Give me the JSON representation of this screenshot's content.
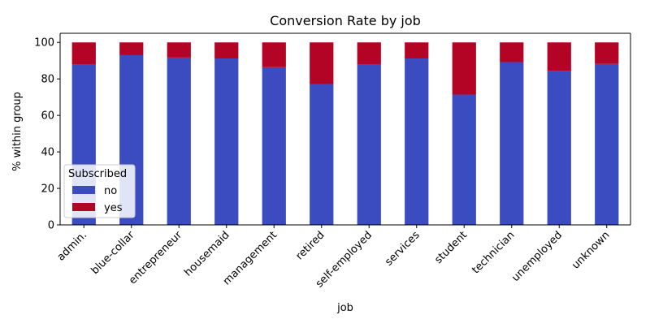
{
  "chart_data": {
    "type": "bar",
    "stacked": true,
    "title": "Conversion Rate by job",
    "xlabel": "job",
    "ylabel": "% within group",
    "ylim": [
      0,
      105
    ],
    "yticks": [
      0,
      20,
      40,
      60,
      80,
      100
    ],
    "grid": false,
    "categories": [
      "admin.",
      "blue-collar",
      "entrepreneur",
      "housemaid",
      "management",
      "retired",
      "self-employed",
      "services",
      "student",
      "technician",
      "unemployed",
      "unknown"
    ],
    "series": [
      {
        "name": "no",
        "color": "#3b4cc0",
        "values": [
          87.8,
          93.0,
          91.7,
          91.2,
          86.4,
          77.2,
          88.1,
          91.2,
          71.4,
          89.2,
          84.5,
          88.2
        ]
      },
      {
        "name": "yes",
        "color": "#b40426",
        "values": [
          12.2,
          7.0,
          8.3,
          8.8,
          13.6,
          22.8,
          11.9,
          8.8,
          28.6,
          10.8,
          15.5,
          11.8
        ]
      }
    ],
    "legend": {
      "title": "Subscribed",
      "placement": "lower-left"
    }
  }
}
